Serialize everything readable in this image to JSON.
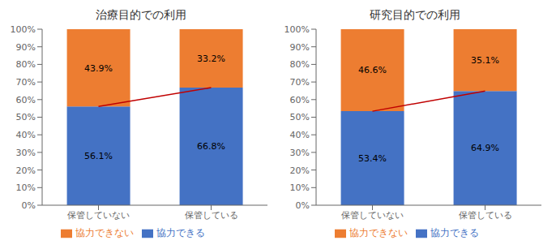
{
  "chart_data": [
    {
      "type": "bar",
      "title": "治療目的での利用",
      "categories": [
        "保管していない",
        "保管している"
      ],
      "series": [
        {
          "name": "協力できる",
          "color": "#4472C4",
          "values": [
            56.1,
            66.8
          ],
          "value_labels": [
            "56.1%",
            "66.8%"
          ]
        },
        {
          "name": "協力できない",
          "color": "#ED7D31",
          "values": [
            43.9,
            33.2
          ],
          "value_labels": [
            "43.9%",
            "33.2%"
          ]
        },
        {
          "type": "line",
          "color": "#C00000",
          "values": [
            56.1,
            66.8
          ]
        }
      ],
      "stacked": true,
      "data_labels": true,
      "grid": false,
      "legend": "bottom",
      "ylim": [
        0,
        100
      ],
      "yticks": [
        {
          "value": 0,
          "label": "0%"
        },
        {
          "value": 10,
          "label": "10%"
        },
        {
          "value": 20,
          "label": "20%"
        },
        {
          "value": 30,
          "label": "30%"
        },
        {
          "value": 40,
          "label": "40%"
        },
        {
          "value": 50,
          "label": "50%"
        },
        {
          "value": 60,
          "label": "60%"
        },
        {
          "value": 70,
          "label": "70%"
        },
        {
          "value": 80,
          "label": "80%"
        },
        {
          "value": 90,
          "label": "90%"
        },
        {
          "value": 100,
          "label": "100%"
        }
      ]
    },
    {
      "type": "bar",
      "title": "研究目的での利用",
      "categories": [
        "保管していない",
        "保管している"
      ],
      "series": [
        {
          "name": "協力できる",
          "color": "#4472C4",
          "values": [
            53.4,
            64.9
          ],
          "value_labels": [
            "53.4%",
            "64.9%"
          ]
        },
        {
          "name": "協力できない",
          "color": "#ED7D31",
          "values": [
            46.6,
            35.1
          ],
          "value_labels": [
            "46.6%",
            "35.1%"
          ]
        },
        {
          "type": "line",
          "color": "#C00000",
          "values": [
            53.4,
            64.9
          ]
        }
      ],
      "stacked": true,
      "data_labels": true,
      "grid": false,
      "legend": "bottom",
      "ylim": [
        0,
        100
      ],
      "yticks": [
        {
          "value": 0,
          "label": "0%"
        },
        {
          "value": 10,
          "label": "10%"
        },
        {
          "value": 20,
          "label": "20%"
        },
        {
          "value": 30,
          "label": "30%"
        },
        {
          "value": 40,
          "label": "40%"
        },
        {
          "value": 50,
          "label": "50%"
        },
        {
          "value": 60,
          "label": "60%"
        },
        {
          "value": 70,
          "label": "70%"
        },
        {
          "value": 80,
          "label": "80%"
        },
        {
          "value": 90,
          "label": "90%"
        },
        {
          "value": 100,
          "label": "100%"
        }
      ]
    }
  ]
}
